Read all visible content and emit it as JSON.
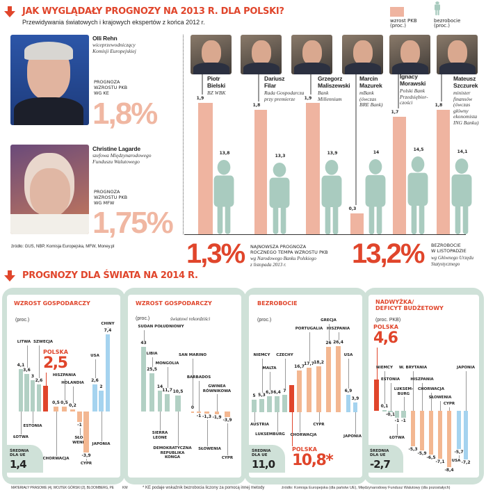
{
  "header": {
    "title": "JAK WYGLĄDAŁY PROGNOZY NA 2013 R. DLA POLSKI?",
    "subtitle": "Przewidywania światowych i krajowych ekspertów z końca 2012 r."
  },
  "legend": {
    "gdp": "wzrost PKB\n(proc.)",
    "unemployment": "bezrobocie\n(proc.)"
  },
  "institutions": [
    {
      "name": "Olli Rehn",
      "role": "wiceprzewodniczący\nKomisji Europejskiej",
      "caption": "PROGNOZA\nWZROSTU PKB\nWG KE",
      "value": "1,8%"
    },
    {
      "name": "Christine Lagarde",
      "role": "szefowa Międzynarodowego\nFunduszu Walutowego",
      "caption": "PROGNOZA\nWZROSTU PKB\nWG MFW",
      "value": "1,75%"
    }
  ],
  "source_top": "źródło: GUS, NBP, Komisja Europejska, MFW, Money.pl",
  "summary": {
    "gdp_value": "1,3%",
    "gdp_caption": "NAJNOWSZA PROGNOZA\nROCZNEGO TEMPA WZROSTU PKB",
    "gdp_note": "wg Narodowego Banku Polskiego\nz listopada 2013 r.",
    "unemp_value": "13,2%",
    "unemp_caption": "BEZROBOCIE\nW LISTOPADZIE",
    "unemp_note": "wg Głównego Urzędu\nStatystycznego"
  },
  "section2_title": "PROGNOZY DLA ŚWIATA NA 2014 R.",
  "chart_data": [
    {
      "type": "bar",
      "title": "JAK WYGLĄDAŁY PROGNOZY NA 2013 R. DLA POLSKI?",
      "series": [
        {
          "name": "wzrost PKB (proc.)",
          "values": [
            1.9,
            1.8,
            1.9,
            0.3,
            1.7,
            1.8
          ]
        },
        {
          "name": "bezrobocie (proc.)",
          "values": [
            13.8,
            13.3,
            13.9,
            14,
            14.5,
            14.1
          ]
        }
      ],
      "experts": [
        {
          "name": "Piotr\nBielski",
          "org": "BZ WBK",
          "gdp": 1.9,
          "gdp_label": "1,9",
          "unemp": 13.8,
          "unemp_label": "13,8"
        },
        {
          "name": "Dariusz\nFilar",
          "org": "Rada Gospodarcza\nprzy premierze",
          "gdp": 1.8,
          "gdp_label": "1,8",
          "unemp": 13.3,
          "unemp_label": "13,3"
        },
        {
          "name": "Grzegorz\nMaliszewski",
          "org": "Bank\nMillennium",
          "gdp": 1.9,
          "gdp_label": "1,9",
          "unemp": 13.9,
          "unemp_label": "13,9"
        },
        {
          "name": "Marcin\nMazurek",
          "org": "mBank\n(ówczas\nBRE Bank)",
          "gdp": 0.3,
          "gdp_label": "0,3",
          "unemp": 14,
          "unemp_label": "14"
        },
        {
          "name": "Ignacy\nMorawski",
          "org": "Polski Bank\nPrzedsiębior-\nczości",
          "gdp": 1.7,
          "gdp_label": "1,7",
          "unemp": 14.5,
          "unemp_label": "14,5"
        },
        {
          "name": "Mateusz\nSzczurek",
          "org": "minister\nfinansów\n(ówczas\ngłówny\nekonomista\nING Banku)",
          "gdp": 1.8,
          "gdp_label": "1,8",
          "unemp": 14.1,
          "unemp_label": "14,1"
        }
      ]
    },
    {
      "type": "bar",
      "title": "WZROST GOSPODARCZY",
      "unit": "(proc.)",
      "highlight": {
        "name": "POLSKA",
        "value": "2,5"
      },
      "average": {
        "label": "ŚREDNIA\nDLA UE",
        "value": "1,4"
      },
      "bars": [
        {
          "name": "ŁOTWA",
          "value": 4.1,
          "label": "4,1",
          "group": "eu"
        },
        {
          "name": "LITWA",
          "value": 3.6,
          "label": "3,6",
          "group": "eu"
        },
        {
          "name": "ESTONIA",
          "value": 3,
          "label": "3",
          "group": "eu"
        },
        {
          "name": "SZWECJA",
          "value": 2.6,
          "label": "2,6",
          "group": "eu"
        },
        {
          "name": "POLSKA",
          "value": 2.5,
          "label": "2,5",
          "group": "pl"
        },
        {
          "name": "CHORWACJA",
          "value": 0.5,
          "label": "0,5",
          "group": "low"
        },
        {
          "name": "HISZPANIA",
          "value": 0.5,
          "label": "0,5",
          "group": "low"
        },
        {
          "name": "HOLANDIA",
          "value": 0.2,
          "label": "0,2",
          "group": "low"
        },
        {
          "name": "SŁO-\nWENIA",
          "value": -1,
          "label": "-1",
          "group": "low"
        },
        {
          "name": "CYPR",
          "value": -3.9,
          "label": "-3,9",
          "group": "low"
        },
        {
          "name": "USA",
          "value": 2.6,
          "label": "2,6",
          "group": "world"
        },
        {
          "name": "JAPONIA",
          "value": 2,
          "label": "2",
          "group": "world"
        },
        {
          "name": "CHINY",
          "value": 7.4,
          "label": "7,4",
          "group": "world"
        }
      ]
    },
    {
      "type": "bar",
      "title": "WZROST GOSPODARCZY",
      "unit": "(proc.)",
      "note": "światowi rekordziści",
      "bars": [
        {
          "name": "SUDAN POŁUDNIOWY",
          "value": 43,
          "label": "43",
          "group": "eu"
        },
        {
          "name": "LIBIA",
          "value": 25.5,
          "label": "25,5",
          "group": "eu"
        },
        {
          "name": "SIERRA\nLEONE",
          "value": 14,
          "label": "14",
          "group": "eu"
        },
        {
          "name": "MONGOLIA",
          "value": 11.7,
          "label": "11,7",
          "group": "eu"
        },
        {
          "name": "DEMOKRATYCZNA\nREPUBLIKA\nKONGA",
          "value": 10.5,
          "label": "10,5",
          "group": "eu"
        },
        {
          "name": "SAN MARINO",
          "value": 0,
          "label": "0",
          "group": "low"
        },
        {
          "name": "BARBADOS",
          "value": -1,
          "label": "-1",
          "group": "low"
        },
        {
          "name": "SŁOWENIA",
          "value": -1.3,
          "label": "-1,3",
          "group": "low"
        },
        {
          "name": "GWINEA\nRÓWNIKOWA",
          "value": -1.9,
          "label": "-1,9",
          "group": "low"
        },
        {
          "name": "CYPR",
          "value": -3.9,
          "label": "-3,9",
          "group": "low"
        }
      ]
    },
    {
      "type": "bar",
      "title": "BEZROBOCIE",
      "unit": "(proc.)",
      "highlight": {
        "name": "POLSKA",
        "value": "10,8*"
      },
      "average": {
        "label": "ŚREDNIA\nDLA UE",
        "value": "11,0"
      },
      "bars": [
        {
          "name": "AUSTRIA",
          "value": 5,
          "label": "5",
          "group": "eu"
        },
        {
          "name": "NIEMCY",
          "value": 5.3,
          "label": "5,3",
          "group": "eu"
        },
        {
          "name": "MALTA",
          "value": 6.3,
          "label": "6,3",
          "group": "eu"
        },
        {
          "name": "LUKSEMBURG",
          "value": 6.4,
          "label": "6,4",
          "group": "eu"
        },
        {
          "name": "CZECHY",
          "value": 7,
          "label": "7",
          "group": "eu"
        },
        {
          "name": "POLSKA",
          "value": 10.8,
          "label": "10,8",
          "group": "pl"
        },
        {
          "name": "CHORWACJA",
          "value": 16.7,
          "label": "16,7",
          "group": "low"
        },
        {
          "name": "PORTUGALIA",
          "value": 17.7,
          "label": "17,7",
          "group": "low"
        },
        {
          "name": "CYPR",
          "value": 18.2,
          "label": "18,2",
          "group": "low"
        },
        {
          "name": "GRECJA",
          "value": 26,
          "label": "26",
          "group": "low"
        },
        {
          "name": "HISZPANIA",
          "value": 26.4,
          "label": "26,4",
          "group": "low"
        },
        {
          "name": "USA",
          "value": 6.9,
          "label": "6,9",
          "group": "world"
        },
        {
          "name": "JAPONIA",
          "value": 3.9,
          "label": "3,9",
          "group": "world"
        }
      ]
    },
    {
      "type": "bar",
      "title": "NADWYŻKA/\nDEFICYT BUDŻETOWY",
      "unit": "(proc. PKB)",
      "highlight": {
        "name": "POLSKA",
        "value": "4,6"
      },
      "average": {
        "label": "ŚREDNIA\nDLA UE",
        "value": "-2,7"
      },
      "bars": [
        {
          "name": "POLSKA",
          "value": 4.6,
          "label": "4,6",
          "group": "pl"
        },
        {
          "name": "NIEMCY",
          "value": 0.1,
          "label": "0,1",
          "group": "eu"
        },
        {
          "name": "ESTONIA",
          "value": -0.1,
          "label": "-0,1",
          "group": "eu"
        },
        {
          "name": "ŁOTWA",
          "value": -1,
          "label": "-1",
          "group": "eu"
        },
        {
          "name": "LUKSEM-\nBURG",
          "value": -1,
          "label": "-1",
          "group": "eu"
        },
        {
          "name": "W. BRYTANIA",
          "value": -5.3,
          "label": "-5,3",
          "group": "low"
        },
        {
          "name": "HISZPANIA",
          "value": -5.9,
          "label": "-5,9",
          "group": "low"
        },
        {
          "name": "CHORWACJA",
          "value": -6.5,
          "label": "-6,5",
          "group": "low"
        },
        {
          "name": "SŁOWENIA",
          "value": -7.1,
          "label": "-7,1",
          "group": "low"
        },
        {
          "name": "CYPR",
          "value": -8.4,
          "label": "-8,4",
          "group": "low"
        },
        {
          "name": "USA",
          "value": -5.7,
          "label": "-5,7",
          "group": "world"
        },
        {
          "name": "JAPONIA",
          "value": -7.2,
          "label": "-7,2",
          "group": "world"
        }
      ]
    }
  ],
  "colors": {
    "accent": "#e0452b",
    "gdp_bar": "#efb4a0",
    "person": "#a9cbbf",
    "eu": "#b2d0c4",
    "low": "#f3b791",
    "world": "#a5d3ef",
    "pl": "#e0452b",
    "frame": "#cfe1d8"
  },
  "footer": {
    "credits": "MATERIAŁY PRASOWE (4), WOJTEK GÓRSKI (2), BLOOMBERG, PE",
    "initials": "KM",
    "note": "* KE podaje wskaźnik bezrobocia liczony za pomocą innej metody",
    "source": "źródło: Komisja Europejska (dla państw UE), Międzynarodowy Fundusz Walutowy (dla pozostałych)"
  }
}
